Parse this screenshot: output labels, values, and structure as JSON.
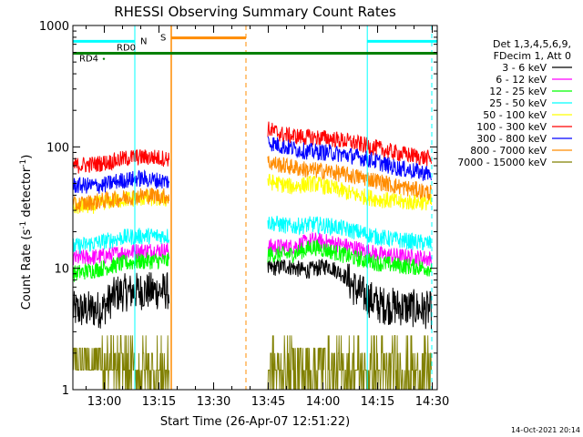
{
  "chart_data": {
    "type": "line",
    "title": "RHESSI Observing Summary Count Rates",
    "xlabel": "Start Time (26-Apr-07 12:51:22)",
    "ylabel_main": "Count Rate (s",
    "ylabel_sup1": "-1",
    "ylabel_mid": " detector",
    "ylabel_sup2": "-1",
    "ylabel_end": ")",
    "yscale": "log",
    "ylim": [
      1,
      1000
    ],
    "xlim_minutes": [
      0,
      100
    ],
    "x_start": "12:51:22",
    "x_ticks": [
      {
        "label": "13:00",
        "minute": 8.63
      },
      {
        "label": "13:15",
        "minute": 23.63
      },
      {
        "label": "13:30",
        "minute": 38.63
      },
      {
        "label": "13:45",
        "minute": 53.63
      },
      {
        "label": "14:00",
        "minute": 68.63
      },
      {
        "label": "14:15",
        "minute": 83.63
      },
      {
        "label": "14:30",
        "minute": 98.63
      }
    ],
    "y_ticks": [
      {
        "label": "1",
        "value": 1
      },
      {
        "label": "10",
        "value": 10
      },
      {
        "label": "100",
        "value": 100
      },
      {
        "label": "1000",
        "value": 1000
      }
    ],
    "legend_header": [
      "Det 1,3,4,5,6,9,",
      "FDecim 1, Att 0"
    ],
    "legend_position": "right",
    "data_gap_minutes": [
      26.5,
      53.5
    ],
    "series": [
      {
        "name": "3 - 6 keV",
        "color": "#000000",
        "points": [
          [
            0,
            4.5
          ],
          [
            8,
            4.6
          ],
          [
            12,
            6.2
          ],
          [
            18,
            6.5
          ],
          [
            26,
            6.5
          ],
          [
            53.5,
            9.8
          ],
          [
            58,
            10.5
          ],
          [
            64,
            9.5
          ],
          [
            70,
            10.5
          ],
          [
            74,
            9
          ],
          [
            78,
            6.5
          ],
          [
            84,
            5
          ],
          [
            90,
            4.8
          ],
          [
            98,
            4.5
          ]
        ]
      },
      {
        "name": "6 - 12 keV",
        "color": "#ff00ff",
        "points": [
          [
            0,
            12
          ],
          [
            8,
            12.5
          ],
          [
            14,
            13.5
          ],
          [
            20,
            14
          ],
          [
            26,
            14
          ],
          [
            53.5,
            15
          ],
          [
            60,
            15
          ],
          [
            66,
            17
          ],
          [
            72,
            16
          ],
          [
            78,
            14.5
          ],
          [
            84,
            13
          ],
          [
            90,
            12.5
          ],
          [
            98,
            12
          ]
        ]
      },
      {
        "name": "12 - 25 keV",
        "color": "#00ff00",
        "points": [
          [
            0,
            9
          ],
          [
            8,
            10
          ],
          [
            14,
            11
          ],
          [
            20,
            11.5
          ],
          [
            26,
            11.5
          ],
          [
            53.5,
            13
          ],
          [
            60,
            13
          ],
          [
            66,
            15
          ],
          [
            72,
            13.5
          ],
          [
            78,
            12
          ],
          [
            84,
            11
          ],
          [
            90,
            10.5
          ],
          [
            98,
            10
          ]
        ]
      },
      {
        "name": "25 - 50 keV",
        "color": "#00ffff",
        "points": [
          [
            0,
            15
          ],
          [
            8,
            16.5
          ],
          [
            14,
            18
          ],
          [
            20,
            18.5
          ],
          [
            26,
            18.5
          ],
          [
            53.5,
            24
          ],
          [
            60,
            22
          ],
          [
            66,
            23
          ],
          [
            72,
            22
          ],
          [
            78,
            20
          ],
          [
            84,
            18
          ],
          [
            90,
            17
          ],
          [
            98,
            16
          ]
        ]
      },
      {
        "name": "50 - 100 keV",
        "color": "#ffff00",
        "points": [
          [
            0,
            32
          ],
          [
            6,
            33
          ],
          [
            8,
            35
          ],
          [
            14,
            37
          ],
          [
            20,
            38
          ],
          [
            26,
            37
          ],
          [
            53.5,
            52
          ],
          [
            60,
            47
          ],
          [
            66,
            50
          ],
          [
            72,
            45
          ],
          [
            78,
            40
          ],
          [
            84,
            37
          ],
          [
            90,
            35
          ],
          [
            98,
            35
          ]
        ]
      },
      {
        "name": "100 - 300 keV",
        "color": "#ff0000",
        "points": [
          [
            0,
            70
          ],
          [
            6,
            72
          ],
          [
            10,
            75
          ],
          [
            16,
            82
          ],
          [
            22,
            82
          ],
          [
            26,
            80
          ],
          [
            53.5,
            140
          ],
          [
            58,
            125
          ],
          [
            64,
            120
          ],
          [
            70,
            118
          ],
          [
            76,
            110
          ],
          [
            82,
            100
          ],
          [
            88,
            90
          ],
          [
            98,
            80
          ]
        ]
      },
      {
        "name": "300 - 800 keV",
        "color": "#0000ff",
        "points": [
          [
            0,
            48
          ],
          [
            8,
            48
          ],
          [
            12,
            52
          ],
          [
            18,
            55
          ],
          [
            26,
            52
          ],
          [
            53.5,
            110
          ],
          [
            58,
            100
          ],
          [
            64,
            92
          ],
          [
            70,
            90
          ],
          [
            76,
            85
          ],
          [
            82,
            78
          ],
          [
            88,
            68
          ],
          [
            98,
            60
          ]
        ]
      },
      {
        "name": "800 - 7000 keV",
        "color": "#ff8c00",
        "points": [
          [
            0,
            33
          ],
          [
            8,
            36
          ],
          [
            14,
            38
          ],
          [
            20,
            40
          ],
          [
            26,
            39
          ],
          [
            53.5,
            75
          ],
          [
            58,
            70
          ],
          [
            64,
            65
          ],
          [
            70,
            63
          ],
          [
            76,
            58
          ],
          [
            82,
            54
          ],
          [
            88,
            48
          ],
          [
            98,
            42
          ]
        ]
      },
      {
        "name": "7000 - 15000 keV",
        "color": "#808000",
        "points": [
          [
            0,
            1.4
          ],
          [
            98,
            1.4
          ]
        ]
      }
    ],
    "annotations": [
      {
        "label": "N",
        "color": "#00ffff",
        "type": "night",
        "minute_ranges": [
          [
            0,
            17
          ],
          [
            80.8,
            100
          ]
        ],
        "level": 740,
        "dashed_at": [
          17,
          98.5
        ]
      },
      {
        "label": "S",
        "color": "#ff8c00",
        "type": "saa",
        "minute_ranges": [
          [
            27,
            47.5
          ]
        ],
        "level": 790,
        "dashed_at": [
          47.5
        ]
      },
      {
        "label": "RD0",
        "color": "#000000",
        "type": "text",
        "minute": 12,
        "level": 620
      },
      {
        "label": "RD4",
        "color": "#008000",
        "type": "flag",
        "minute": 5,
        "level": 540
      }
    ],
    "flag_line": {
      "color": "#008000",
      "level": 590
    },
    "grid": false
  },
  "footer_timestamp": "14-Oct-2021 20:14"
}
